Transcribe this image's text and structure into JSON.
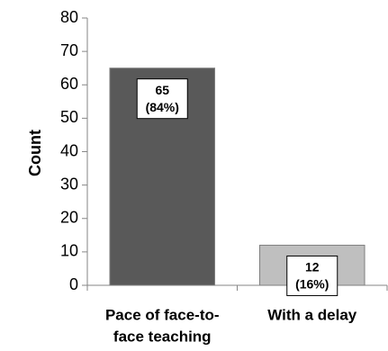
{
  "chart_data": {
    "type": "bar",
    "categories": [
      [
        "Pace of face-to-",
        "face teaching"
      ],
      [
        "With a delay"
      ]
    ],
    "values": [
      65,
      12
    ],
    "data_labels": [
      [
        "65",
        "(84%)"
      ],
      [
        "12",
        "(16%)"
      ]
    ],
    "ylabel": "Count",
    "xlabel": "",
    "ylim": [
      0,
      80
    ],
    "yticks": [
      0,
      10,
      20,
      30,
      40,
      50,
      60,
      70,
      80
    ],
    "grid": false,
    "legend": "none",
    "bar_colors": [
      "#595959",
      "#bfbfbf"
    ],
    "bar_border_color": "#7f7f7f",
    "axis_color": "#868686"
  }
}
